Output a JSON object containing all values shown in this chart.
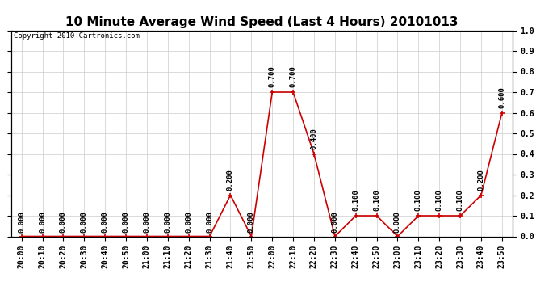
{
  "title": "10 Minute Average Wind Speed (Last 4 Hours) 20101013",
  "copyright": "Copyright 2010 Cartronics.com",
  "x_labels": [
    "20:00",
    "20:10",
    "20:20",
    "20:30",
    "20:40",
    "20:50",
    "21:00",
    "21:10",
    "21:20",
    "21:30",
    "21:40",
    "21:50",
    "22:00",
    "22:10",
    "22:20",
    "22:30",
    "22:40",
    "22:50",
    "23:00",
    "23:10",
    "23:20",
    "23:30",
    "23:40",
    "23:50"
  ],
  "y_values": [
    0.0,
    0.0,
    0.0,
    0.0,
    0.0,
    0.0,
    0.0,
    0.0,
    0.0,
    0.0,
    0.2,
    0.0,
    0.7,
    0.7,
    0.4,
    0.0,
    0.1,
    0.1,
    0.0,
    0.1,
    0.1,
    0.1,
    0.2,
    0.6
  ],
  "value_labels": [
    "0.000",
    "0.000",
    "0.000",
    "0.000",
    "0.000",
    "0.000",
    "0.000",
    "0.000",
    "0.000",
    "0.000",
    "0.200",
    "0.000",
    "0.700",
    "0.700",
    "0.400",
    "0.000",
    "0.100",
    "0.100",
    "0.000",
    "0.100",
    "0.100",
    "0.100",
    "0.200",
    "0.600"
  ],
  "line_color": "#cc0000",
  "marker_color": "#cc0000",
  "background_color": "#ffffff",
  "grid_color": "#cccccc",
  "ylim": [
    0.0,
    1.0
  ],
  "yticks": [
    0.0,
    0.1,
    0.2,
    0.3,
    0.4,
    0.5,
    0.6,
    0.7,
    0.8,
    0.9,
    1.0
  ],
  "title_fontsize": 11,
  "label_fontsize": 6.5,
  "tick_fontsize": 7,
  "copyright_fontsize": 6.5
}
